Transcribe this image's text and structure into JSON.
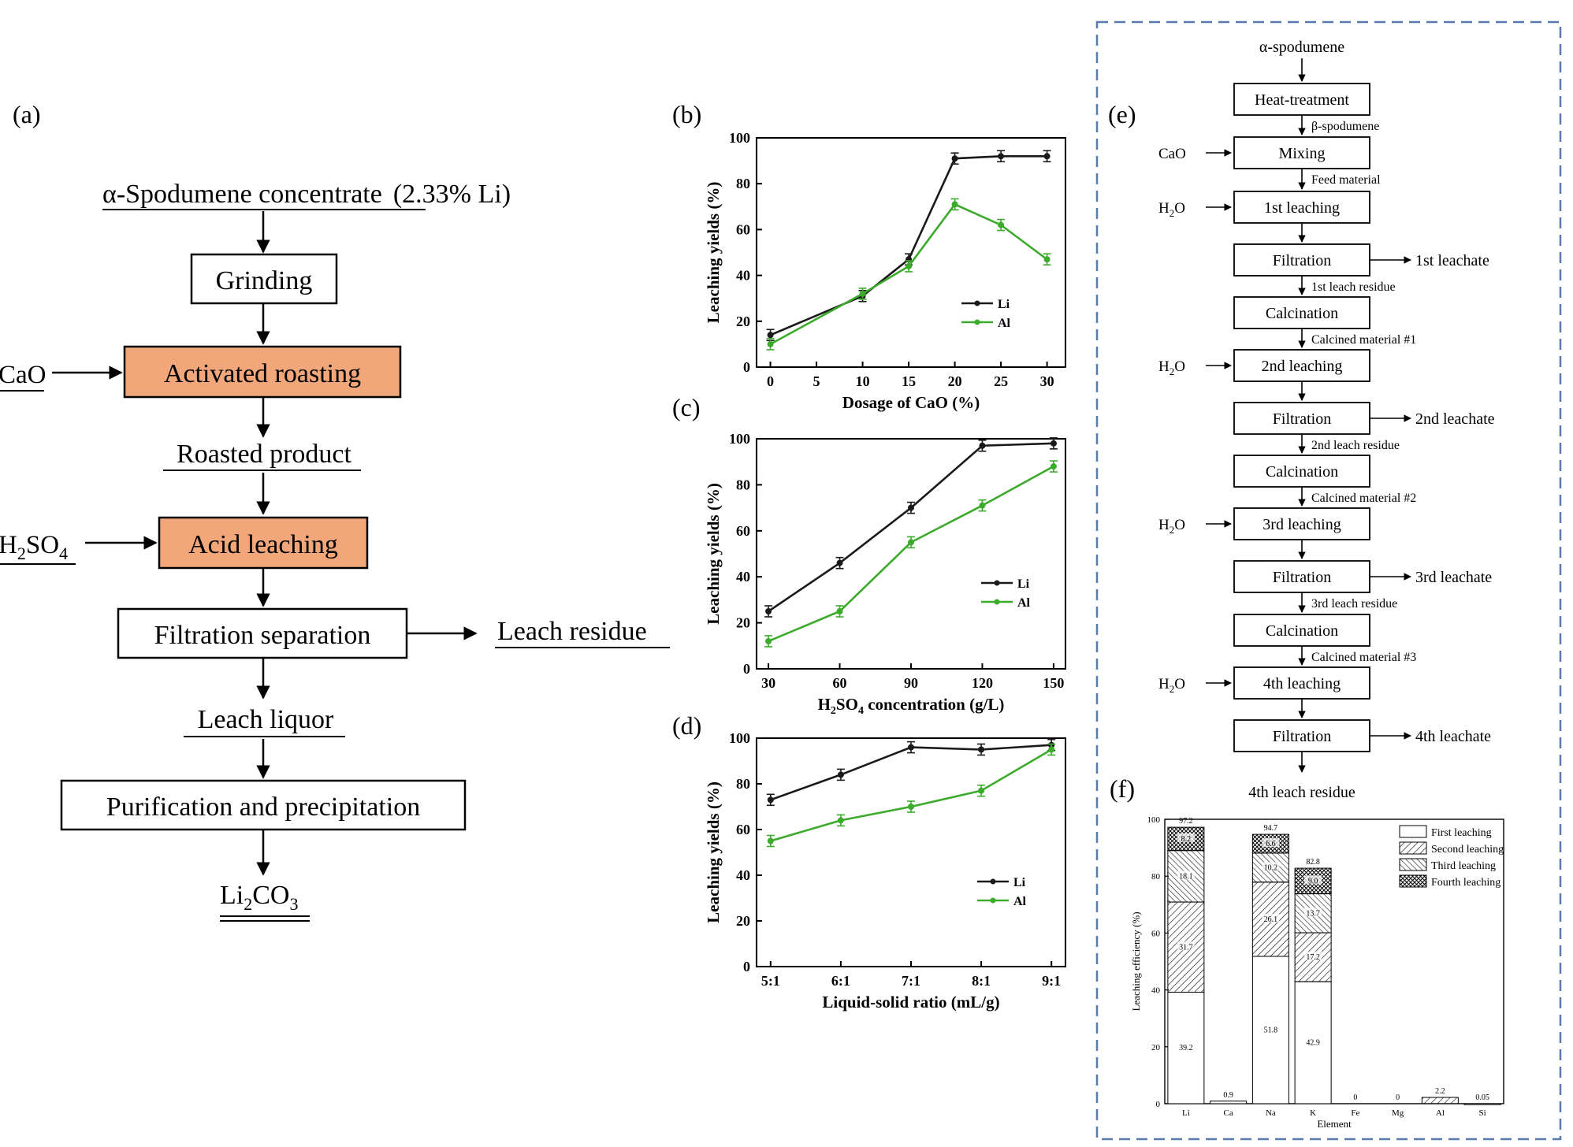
{
  "colors": {
    "li": "#1a1a1a",
    "al": "#3cab2c",
    "orange": "#f2a77a",
    "dash": "#5a7bb0"
  },
  "panel_a": {
    "label": "(a)",
    "top_prefix": "α-Spodumene concentrate",
    "top_suffix": "(2.33% Li)",
    "grinding": "Grinding",
    "cao": "CaO",
    "activated": "Activated roasting",
    "roasted": "Roasted product",
    "h2so4_main": "H",
    "h2so4_sub2": "2",
    "h2so4_mid": "SO",
    "h2so4_sub4": "4",
    "acid": "Acid leaching",
    "filtration": "Filtration separation",
    "leach_residue": "Leach residue",
    "leach_liquor": "Leach liquor",
    "purification": "Purification and precipitation",
    "li2co3_a": "Li",
    "li2co3_b": "2",
    "li2co3_c": "CO",
    "li2co3_d": "3"
  },
  "panel_e": {
    "label": "(e)",
    "start": "α-spodumene",
    "heat": "Heat-treatment",
    "beta": "β-spodumene",
    "cao": "CaO",
    "mixing": "Mixing",
    "feed": "Feed material",
    "h2o_a": "H",
    "h2o_b": "2",
    "h2o_c": "O",
    "leach1": "1st leaching",
    "filt": "Filtration",
    "leachate1": "1st leachate",
    "residue1": "1st leach residue",
    "calc": "Calcination",
    "calcmat1": "Calcined material #1",
    "leach2": "2nd leaching",
    "leachate2": "2nd leachate",
    "residue2": "2nd leach residue",
    "calcmat2": "Calcined material #2",
    "leach3": "3rd leaching",
    "leachate3": "3rd leachate",
    "residue3": "3rd leach residue",
    "calcmat3": "Calcined material #3",
    "leach4": "4th leaching",
    "leachate4": "4th leachate",
    "residue4": "4th leach residue"
  },
  "chart_data": [
    {
      "panel": "(b)",
      "type": "line",
      "xlabel": "Dosage of CaO (%)",
      "ylabel": "Leaching yields (%)",
      "x": [
        0,
        10,
        15,
        20,
        25,
        30
      ],
      "xticks": [
        "0",
        "5",
        "10",
        "15",
        "20",
        "25",
        "30"
      ],
      "xlim": [
        -1.5,
        32
      ],
      "ylim": [
        0,
        100
      ],
      "yticks": [
        "0",
        "20",
        "40",
        "60",
        "80",
        "100"
      ],
      "legend": "right-middle",
      "series": [
        {
          "name": "Li",
          "values": [
            14,
            31,
            47,
            91,
            92,
            92
          ]
        },
        {
          "name": "Al",
          "values": [
            10,
            32,
            44,
            71,
            62,
            47
          ]
        }
      ]
    },
    {
      "panel": "(c)",
      "type": "line",
      "xlabel": "H2SO4 concentration (g/L)",
      "ylabel": "Leaching yields (%)",
      "x": [
        30,
        60,
        90,
        120,
        150
      ],
      "xticks": [
        "30",
        "60",
        "90",
        "120",
        "150"
      ],
      "xlim": [
        25,
        155
      ],
      "ylim": [
        0,
        100
      ],
      "yticks": [
        "0",
        "20",
        "40",
        "60",
        "80",
        "100"
      ],
      "legend": "right-middle",
      "series": [
        {
          "name": "Li",
          "values": [
            25,
            46,
            70,
            97,
            98
          ]
        },
        {
          "name": "Al",
          "values": [
            12,
            25,
            55,
            71,
            88
          ]
        }
      ]
    },
    {
      "panel": "(d)",
      "type": "line",
      "xlabel": "Liquid-solid ratio (mL/g)",
      "ylabel": "Leaching yields (%)",
      "x": [
        5,
        6,
        7,
        8,
        9
      ],
      "xticks": [
        "5:1",
        "6:1",
        "7:1",
        "8:1",
        "9:1"
      ],
      "xlim": [
        4.8,
        9.2
      ],
      "ylim": [
        0,
        100
      ],
      "yticks": [
        "0",
        "20",
        "40",
        "60",
        "80",
        "100"
      ],
      "legend": "bottom-right",
      "series": [
        {
          "name": "Li",
          "values": [
            73,
            84,
            96,
            95,
            97
          ]
        },
        {
          "name": "Al",
          "values": [
            55,
            64,
            70,
            77,
            95
          ]
        }
      ]
    },
    {
      "panel": "(f)",
      "type": "bar",
      "stacked": true,
      "xlabel": "Element",
      "ylabel": "Leaching efficiency (%)",
      "categories": [
        "Li",
        "Ca",
        "Na",
        "K",
        "Fe",
        "Mg",
        "Al",
        "Si"
      ],
      "ylim": [
        0,
        100
      ],
      "yticks": [
        "0",
        "20",
        "40",
        "60",
        "80",
        "100"
      ],
      "totals": [
        "97.2",
        "0.9",
        "94.7",
        "82.8",
        "0",
        "0",
        "2.2",
        "0.05"
      ],
      "legend": "top-right",
      "series": [
        {
          "name": "First leaching",
          "values": [
            39.2,
            0.9,
            51.8,
            42.9,
            0,
            0,
            0,
            0.05
          ],
          "labels": [
            "39.2",
            "",
            "51.8",
            "42.9",
            "",
            "",
            "",
            ""
          ]
        },
        {
          "name": "Second leaching",
          "values": [
            31.7,
            0,
            26.1,
            17.2,
            0,
            0,
            2.2,
            0
          ],
          "labels": [
            "31.7",
            "",
            "26.1",
            "17.2",
            "",
            "",
            "",
            ""
          ]
        },
        {
          "name": "Third leaching",
          "values": [
            18.1,
            0,
            10.2,
            13.7,
            0,
            0,
            0,
            0
          ],
          "labels": [
            "18.1",
            "",
            "10.2",
            "13.7",
            "",
            "",
            "",
            ""
          ]
        },
        {
          "name": "Fourth leaching",
          "values": [
            8.2,
            0,
            6.6,
            9.0,
            0,
            0,
            0,
            0
          ],
          "labels": [
            "8.2",
            "",
            "6.6",
            "9.0",
            "",
            "",
            "",
            ""
          ]
        }
      ]
    }
  ]
}
